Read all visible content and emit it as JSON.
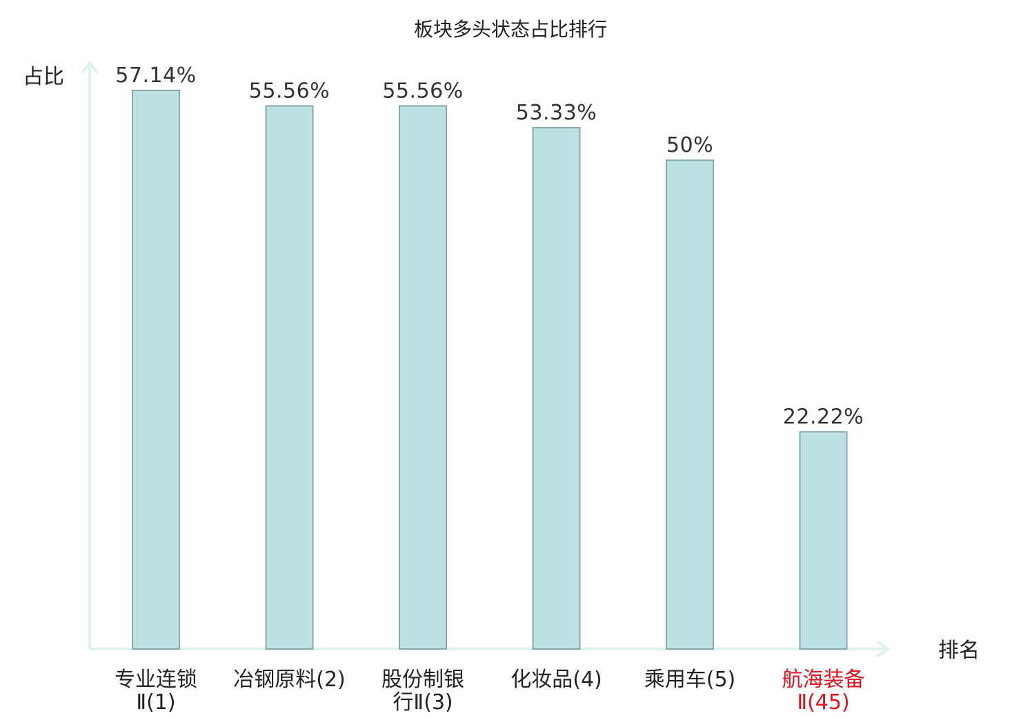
{
  "chart_data": {
    "type": "bar",
    "title": "板块多头状态占比排行",
    "ylabel": "占比",
    "xlabel": "排名",
    "ylim": [
      0,
      60
    ],
    "grid": false,
    "categories": [
      {
        "lines": [
          "专业连锁",
          "Ⅱ(1)"
        ],
        "highlight": false
      },
      {
        "lines": [
          "冶钢原料(2)"
        ],
        "highlight": false
      },
      {
        "lines": [
          "股份制银",
          "行Ⅱ(3)"
        ],
        "highlight": false
      },
      {
        "lines": [
          "化妆品(4)"
        ],
        "highlight": false
      },
      {
        "lines": [
          "乘用车(5)"
        ],
        "highlight": false
      },
      {
        "lines": [
          "航海装备",
          "Ⅱ(45)"
        ],
        "highlight": true
      }
    ],
    "values": [
      57.14,
      55.56,
      55.56,
      53.33,
      50,
      22.22
    ],
    "value_labels": [
      "57.14%",
      "55.56%",
      "55.56%",
      "53.33%",
      "50%",
      "22.22%"
    ],
    "colors": {
      "bar_fill": "#bce0e3",
      "bar_stroke": "#8aa7a9",
      "axis": "#dff0ee",
      "highlight_text": "#e0141e"
    }
  }
}
